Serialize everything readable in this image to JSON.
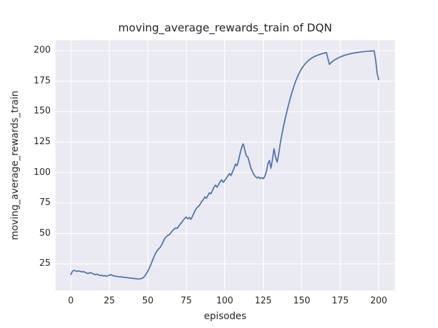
{
  "figure": {
    "title": "moving_average_rewards_train of DQN",
    "xlabel": "episodes",
    "ylabel": "moving_average_rewards_train"
  },
  "chart_data": {
    "type": "line",
    "title": "moving_average_rewards_train of DQN",
    "xlabel": "episodes",
    "ylabel": "moving_average_rewards_train",
    "legend": false,
    "grid": true,
    "plot_bg_color": "#eaeaf2",
    "grid_color": "#ffffff",
    "line_color": "#4C72B0",
    "line_width": 1.8,
    "xlim": [
      -10,
      210.5
    ],
    "ylim": [
      3.2,
      208.6
    ],
    "xticks": [
      0,
      25,
      50,
      75,
      100,
      125,
      150,
      175,
      200
    ],
    "yticks": [
      25,
      50,
      75,
      100,
      125,
      150,
      175,
      200
    ],
    "x_start": 0,
    "x_step": 1,
    "values": [
      16.3,
      18.8,
      19.7,
      19.3,
      18.9,
      19.2,
      18.9,
      18.4,
      18.7,
      18.2,
      17.6,
      17.1,
      17.5,
      17.8,
      17.1,
      16.5,
      16.2,
      16.5,
      16.0,
      15.4,
      15.7,
      15.1,
      15.4,
      14.8,
      15.3,
      15.7,
      16.1,
      15.6,
      15.1,
      14.9,
      14.7,
      14.5,
      14.4,
      14.2,
      14.1,
      13.9,
      13.8,
      13.6,
      13.5,
      13.3,
      13.2,
      13.0,
      12.9,
      12.7,
      12.6,
      12.7,
      13.0,
      13.7,
      15.0,
      16.8,
      19.0,
      21.6,
      24.5,
      27.6,
      30.8,
      33.5,
      35.7,
      37.3,
      38.5,
      40.6,
      43.2,
      45.9,
      47.3,
      48.4,
      49.0,
      50.6,
      52.2,
      53.5,
      54.5,
      54.1,
      55.8,
      57.5,
      59.1,
      60.8,
      62.4,
      63.5,
      62.0,
      63.0,
      61.6,
      64.0,
      66.8,
      69.5,
      71.3,
      72.2,
      74.0,
      76.2,
      77.7,
      80.0,
      78.8,
      81.1,
      83.4,
      82.5,
      85.2,
      88.0,
      89.7,
      88.0,
      90.0,
      92.5,
      94.0,
      92.0,
      93.6,
      95.4,
      97.3,
      99.2,
      97.5,
      100.4,
      103.6,
      107.0,
      105.5,
      110.4,
      116.0,
      120.8,
      123.6,
      118.6,
      113.6,
      112.6,
      108.2,
      103.6,
      100.6,
      98.1,
      96.6,
      95.5,
      96.4,
      95.0,
      95.9,
      94.9,
      96.9,
      100.6,
      107.1,
      109.9,
      103.6,
      111.1,
      119.6,
      112.6,
      108.6,
      115.1,
      123.6,
      130.6,
      137.0,
      142.8,
      148.3,
      153.5,
      158.4,
      163.0,
      167.3,
      171.2,
      174.8,
      178.0,
      180.8,
      183.3,
      185.5,
      187.3,
      189.0,
      190.4,
      191.6,
      192.7,
      193.6,
      194.4,
      195.1,
      195.7,
      196.2,
      196.7,
      197.1,
      197.5,
      197.9,
      198.2,
      198.6,
      193.5,
      188.8,
      190.2,
      191.3,
      192.2,
      193.0,
      193.7,
      194.3,
      194.9,
      195.4,
      195.9,
      196.3,
      196.7,
      197.1,
      197.4,
      197.7,
      198.0,
      198.2,
      198.4,
      198.6,
      198.8,
      199.0,
      199.1,
      199.3,
      199.4,
      199.5,
      199.6,
      199.7,
      199.8,
      199.9,
      199.9,
      192.5,
      181.5,
      176.3
    ]
  }
}
